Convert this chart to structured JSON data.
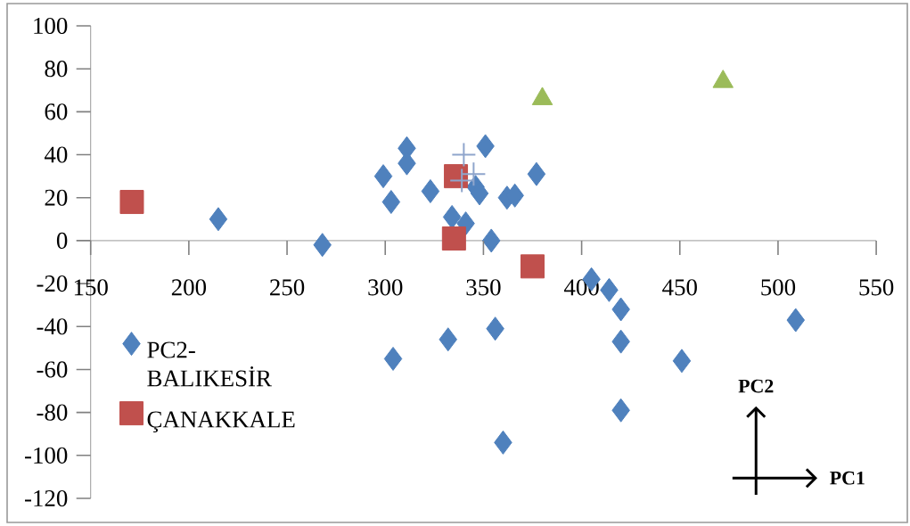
{
  "chart_data": {
    "type": "scatter",
    "xlim": [
      150,
      550
    ],
    "ylim": [
      -120,
      100
    ],
    "xticks": [
      150,
      200,
      250,
      300,
      350,
      400,
      450,
      500,
      550
    ],
    "yticks": [
      -120,
      -100,
      -80,
      -60,
      -40,
      -20,
      0,
      20,
      40,
      60,
      80,
      100
    ],
    "legend": "left",
    "annotations": [
      "PC2",
      "PC1"
    ],
    "series": [
      {
        "name": "PC2-BALIKESİR",
        "color": "#4f81bd",
        "marker": "diamond",
        "x": [
          215,
          268,
          299,
          303,
          311,
          311,
          323,
          334,
          341,
          354,
          351,
          346,
          348,
          362,
          366,
          377,
          405,
          414,
          420,
          420,
          451,
          509,
          420,
          360,
          356,
          332,
          304
        ],
        "values": [
          10,
          -2,
          30,
          18,
          43,
          36,
          23,
          11,
          8,
          0,
          44,
          25,
          22,
          20,
          21,
          31,
          -18,
          -23,
          -32,
          -47,
          -56,
          -37,
          -79,
          -94,
          -41,
          -46,
          -55
        ]
      },
      {
        "name": "ÇANAKKALE",
        "color": "#c0504d",
        "marker": "square",
        "x": [
          171,
          336,
          335,
          375
        ],
        "values": [
          18,
          30,
          1,
          -12
        ]
      },
      {
        "color": "#9bbb59",
        "marker": "triangle",
        "x": [
          380,
          472
        ],
        "values": [
          66,
          74
        ]
      },
      {
        "color": "#8fa5cc",
        "marker": "cross",
        "x": [
          340,
          345,
          339
        ],
        "values": [
          40,
          31,
          28
        ]
      }
    ]
  }
}
